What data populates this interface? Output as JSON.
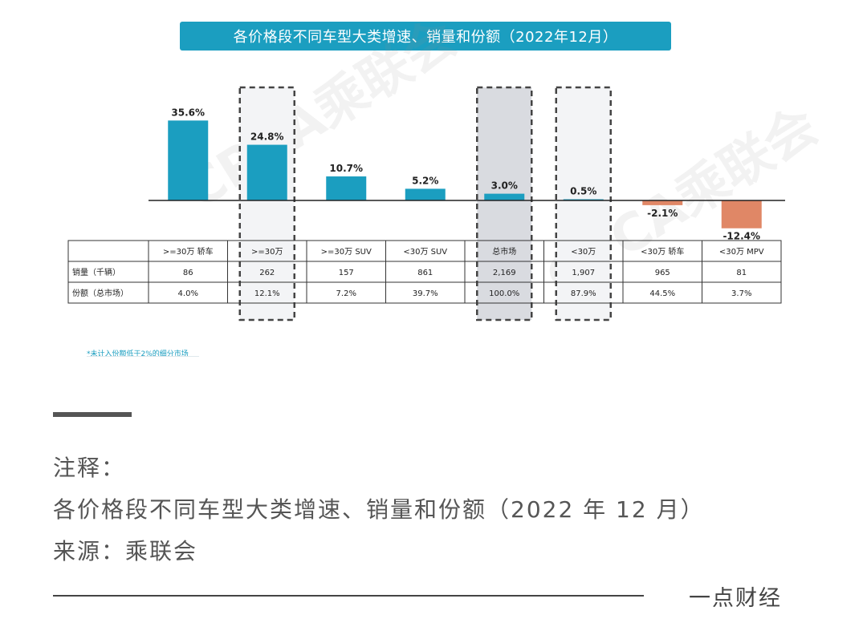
{
  "title": "各价格段不同车型大类增速、销量和份额（2022年12月）",
  "watermark": "CPCA乘联会",
  "chart_data": {
    "type": "bar",
    "categories": [
      ">=30万 轿车",
      ">=30万",
      ">=30万 SUV",
      "<30万 SUV",
      "总市场",
      "<30万",
      "<30万 轿车",
      "<30万 MPV"
    ],
    "series": [
      {
        "values": [
          35.6,
          24.8,
          10.7,
          5.2,
          3.0,
          0.5,
          -2.1,
          -12.4
        ]
      }
    ],
    "value_labels": [
      "35.6%",
      "24.8%",
      "10.7%",
      "5.2%",
      "3.0%",
      "0.5%",
      "-2.1%",
      "-12.4%"
    ],
    "colors": {
      "positive": "#1b9ec0",
      "negative": "#e08766",
      "highlight": "#d9dbe0"
    },
    "highlighted": [
      1,
      4,
      5
    ],
    "table": {
      "rows": [
        {
          "label": "销量（千辆）",
          "values": [
            "86",
            "262",
            "157",
            "861",
            "2,169",
            "1,907",
            "965",
            "81"
          ]
        },
        {
          "label": "份额（总市场）",
          "values": [
            "4.0%",
            "12.1%",
            "7.2%",
            "39.7%",
            "100.0%",
            "87.9%",
            "44.5%",
            "3.7%"
          ]
        }
      ]
    },
    "footnote": "*未计入份额低于2%的细分市场"
  },
  "notes": {
    "line1": "注释：",
    "line2": "各价格段不同车型大类增速、销量和份额（2022 年 12 月）",
    "line3": "来源：乘联会"
  },
  "brand": "一点财经"
}
